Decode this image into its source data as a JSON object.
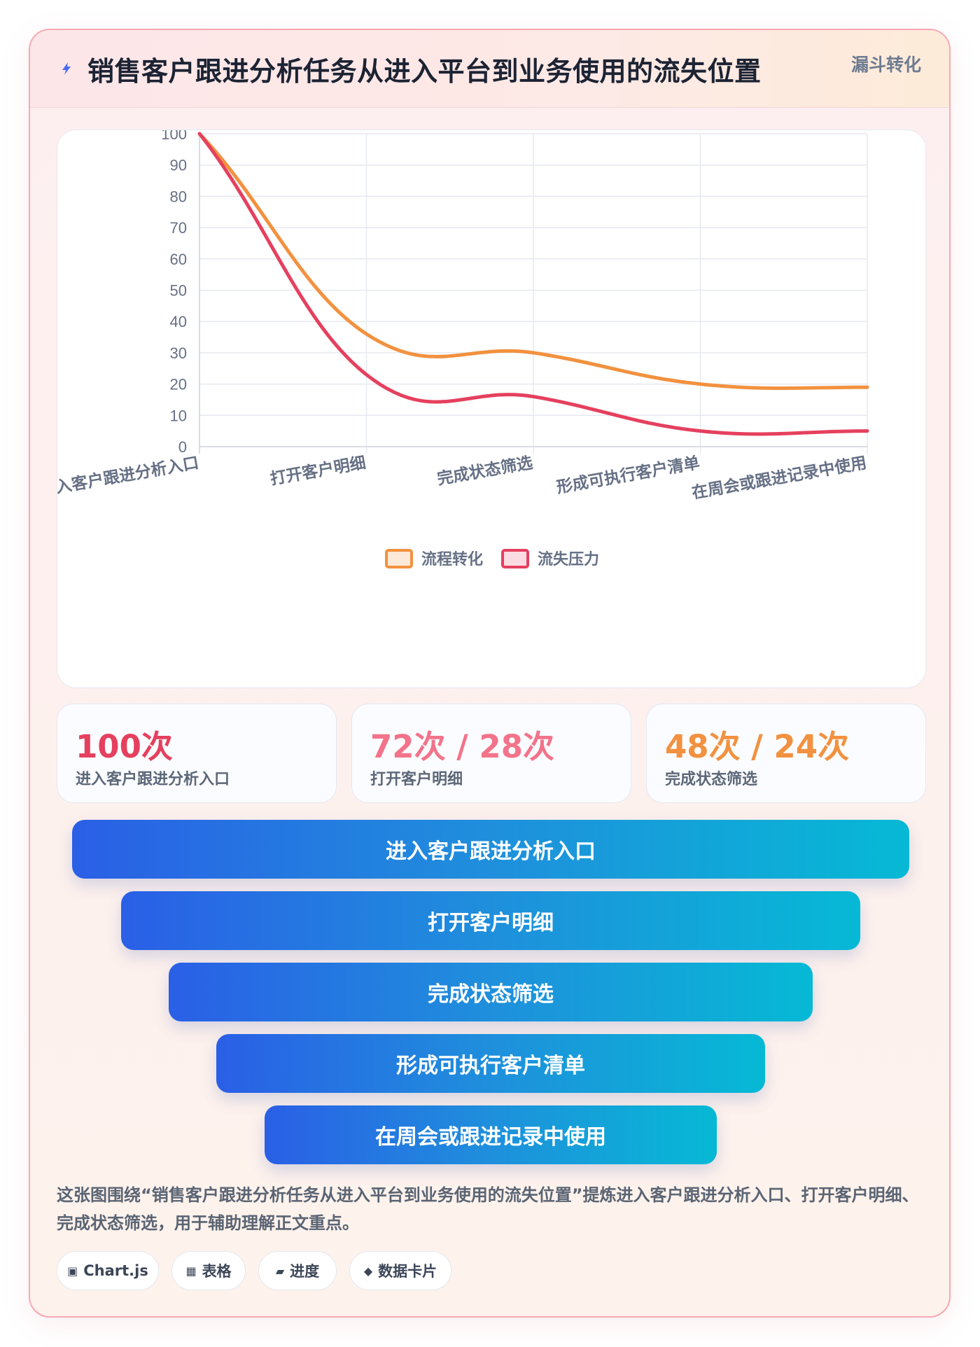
{
  "header": {
    "title": "销售客户跟进分析任务从进入平台到业务使用的流失位置",
    "tag": "漏斗转化",
    "icon": "bolt-icon"
  },
  "colors": {
    "conversion": "#f2913f",
    "loss": "#e5405e",
    "funnel_start": "#2a5fe6",
    "funnel_end": "#06b9d5"
  },
  "chart_data": {
    "type": "line",
    "categories": [
      "进入客户跟进分析入口",
      "打开客户明细",
      "完成状态筛选",
      "形成可执行客户清单",
      "在周会或跟进记录中使用"
    ],
    "series": [
      {
        "name": "流程转化",
        "values": [
          100,
          36,
          30,
          20,
          19
        ],
        "color": "#f2913f"
      },
      {
        "name": "流失压力",
        "values": [
          100,
          23,
          16,
          5,
          5
        ],
        "color": "#e5405e"
      }
    ],
    "ylim": [
      0,
      100
    ],
    "yticks": [
      0,
      10,
      20,
      30,
      40,
      50,
      60,
      70,
      80,
      90,
      100
    ],
    "grid": true,
    "smooth": true,
    "legend_position": "bottom"
  },
  "stats": [
    {
      "value": "100次",
      "label": "进入客户跟进分析入口",
      "color": "#e5405e"
    },
    {
      "value": "72次 / 28次",
      "label": "打开客户明细",
      "color": "#f2738a"
    },
    {
      "value": "48次 / 24次",
      "label": "完成状态筛选",
      "color": "#f2913f"
    }
  ],
  "funnel": [
    {
      "label": "进入客户跟进分析入口"
    },
    {
      "label": "打开客户明细"
    },
    {
      "label": "完成状态筛选"
    },
    {
      "label": "形成可执行客户清单"
    },
    {
      "label": "在周会或跟进记录中使用"
    }
  ],
  "description": "这张图围绕“销售客户跟进分析任务从进入平台到业务使用的流失位置”提炼进入客户跟进分析入口、打开客户明细、完成状态筛选，用于辅助理解正文重点。",
  "pills": [
    {
      "label": "Chart.js",
      "icon": "chart-icon"
    },
    {
      "label": "表格",
      "icon": "table-icon"
    },
    {
      "label": "进度",
      "icon": "progress-icon"
    },
    {
      "label": "数据卡片",
      "icon": "card-icon"
    }
  ]
}
